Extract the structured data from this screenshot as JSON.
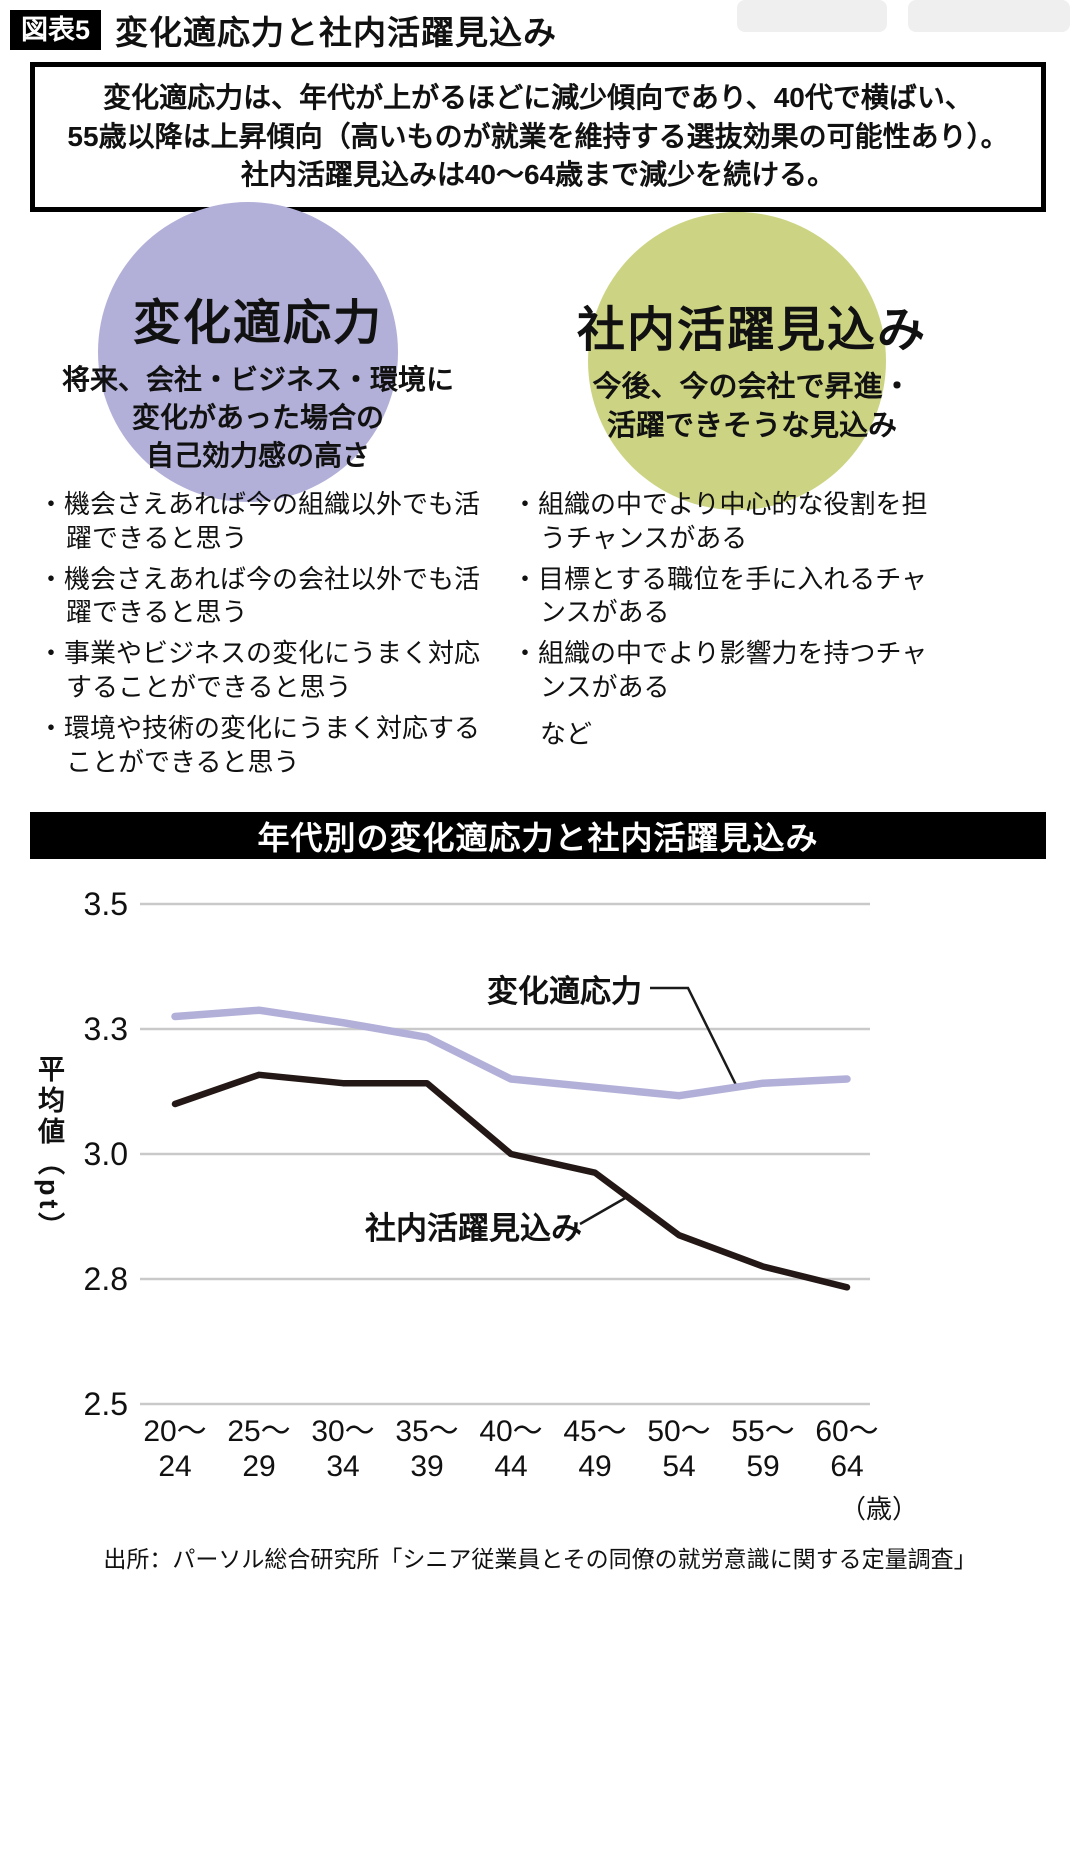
{
  "figure": {
    "tag": "図表5",
    "title": "変化適応力と社内活躍見込み"
  },
  "summary": {
    "lines": [
      "変化適応力は、年代が上がるほどに減少傾向であり、40代で横ばい、",
      "55歳以降は上昇傾向（高いものが就業を維持する選抜効果の可能性あり）。",
      "社内活躍見込みは40〜64歳まで減少を続ける。"
    ]
  },
  "ui": {
    "bullet_marker": "・"
  },
  "concepts": {
    "left": {
      "title": "変化適応力",
      "circle_color": "#b2b0d8",
      "description_lines": [
        "将来、会社・ビジネス・環境に",
        "変化があった場合の",
        "自己効力感の高さ"
      ],
      "bullets": [
        "機会さえあれば今の組織以外でも活躍できると思う",
        "機会さえあれば今の会社以外でも活躍できると思う",
        "事業やビジネスの変化にうまく対応することができると思う",
        "環境や技術の変化にうまく対応することができると思う"
      ]
    },
    "right": {
      "title": "社内活躍見込み",
      "circle_color": "#ccd483",
      "description_lines": [
        "今後、今の会社で昇進・",
        "活躍できそうな見込み"
      ],
      "bullets": [
        "組織の中でより中心的な役割を担うチャンスがある",
        "目標とする職位を手に入れるチャンスがある",
        "組織の中でより影響力を持つチャンスがある"
      ],
      "bullets_suffix": "など"
    }
  },
  "chart_data": {
    "type": "line",
    "title": "年代別の変化適応力と社内活躍見込み",
    "ylabel": "平均値（pt）",
    "x_unit": "（歳）",
    "categories": [
      "20〜24",
      "25〜29",
      "30〜34",
      "35〜39",
      "40〜44",
      "45〜49",
      "50〜54",
      "55〜59",
      "60〜64"
    ],
    "y_ticks": [
      3.5,
      3.3,
      3.0,
      2.8,
      2.5
    ],
    "y_axis_evenly_spaced_ticks": true,
    "grid": true,
    "legend_position": "inline-annotations",
    "series": [
      {
        "id": "adaptability",
        "name": "変化適応力",
        "color": "#b2b0d8",
        "values": [
          3.32,
          3.33,
          3.31,
          3.28,
          3.18,
          3.16,
          3.14,
          3.17,
          3.18
        ]
      },
      {
        "id": "prospects",
        "name": "社内活躍見込み",
        "color": "#231815",
        "values": [
          3.12,
          3.19,
          3.17,
          3.17,
          3.0,
          2.97,
          2.87,
          2.82,
          2.78
        ]
      }
    ]
  },
  "source": "出所：パーソル総合研究所「シニア従業員とその同僚の就労意識に関する定量調査」"
}
